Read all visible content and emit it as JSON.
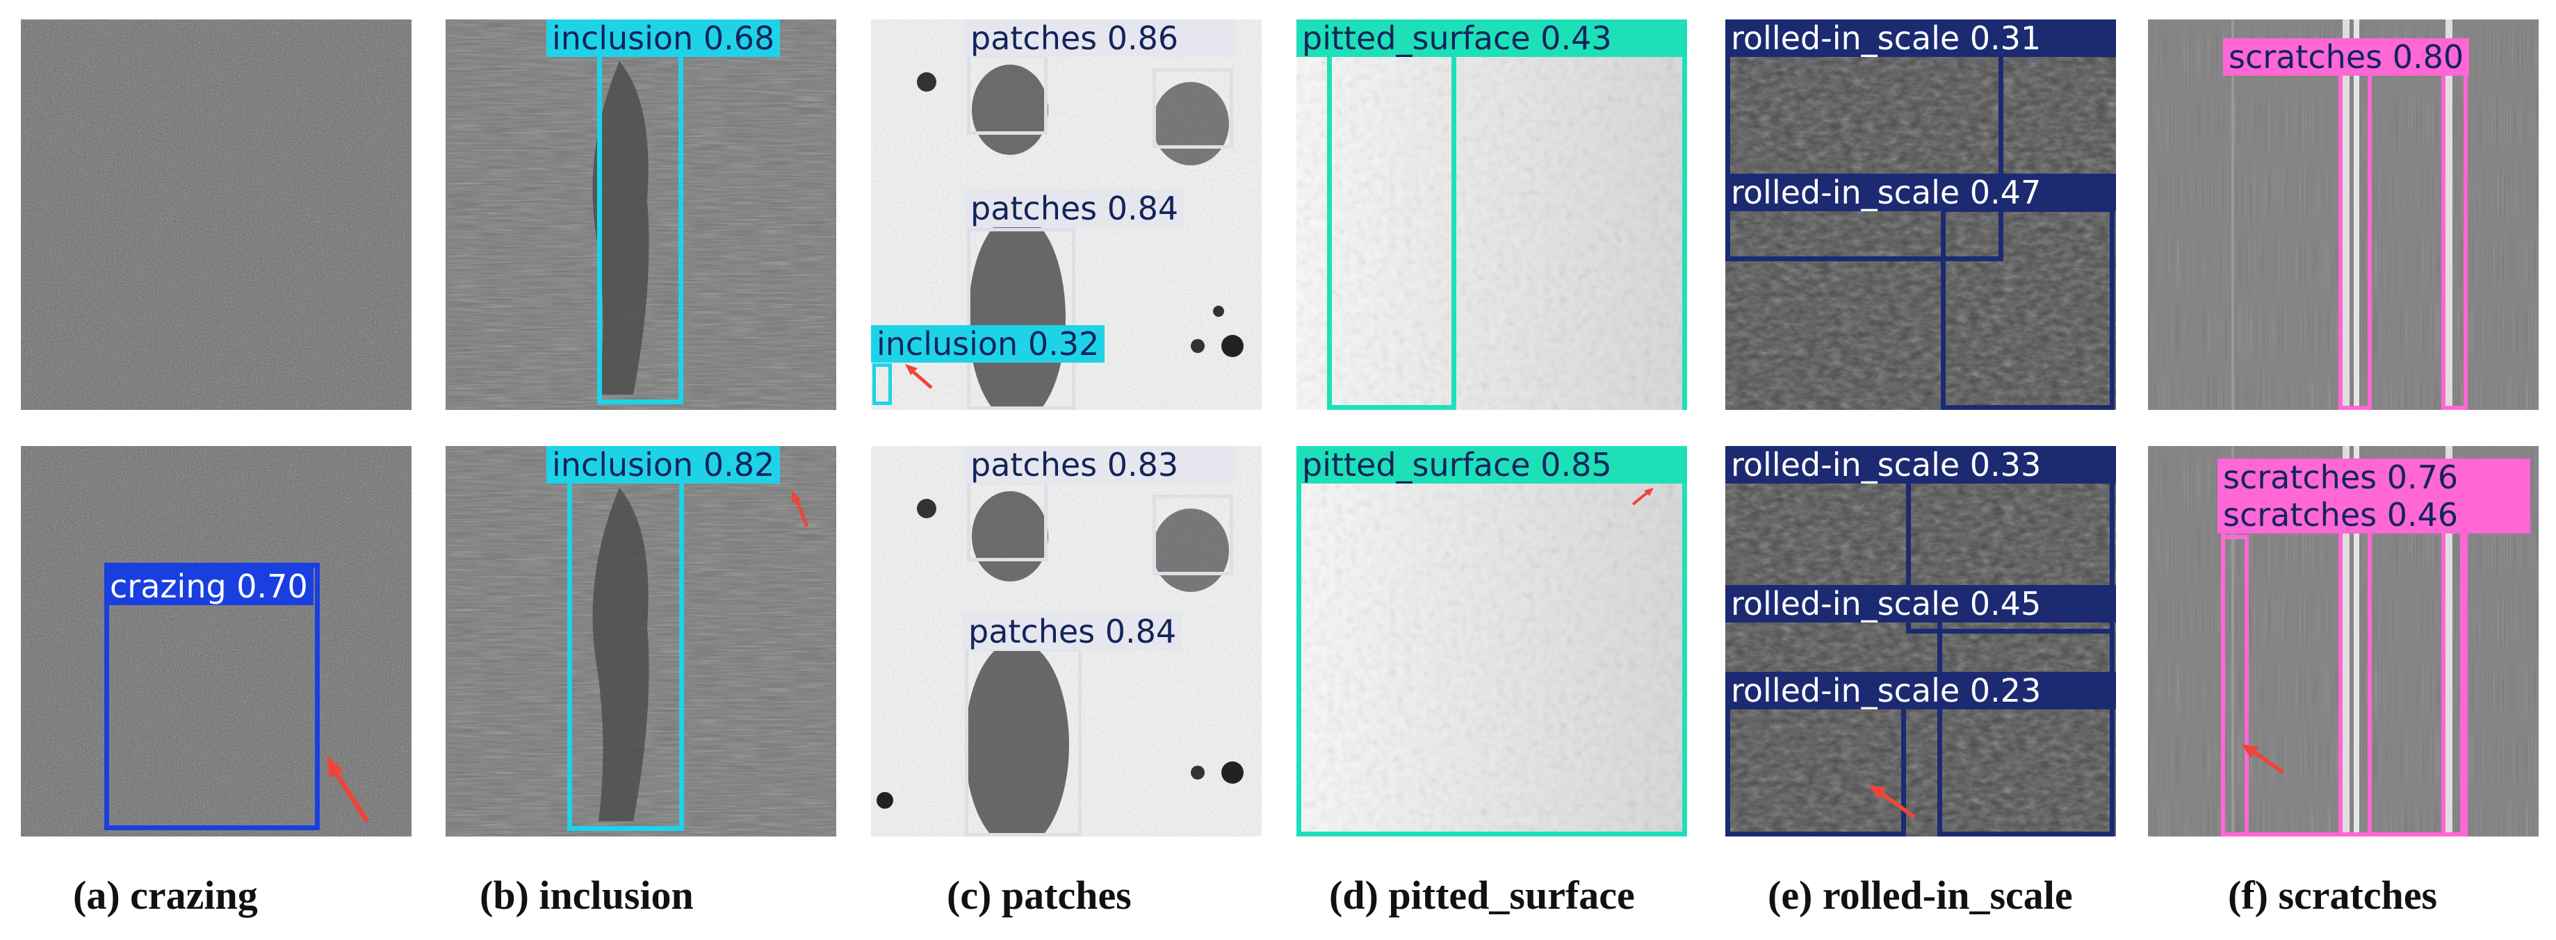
{
  "colors": {
    "crazing": "#1a3fe0",
    "inclusion": "#1ed3e8",
    "patches": "#e6e6ee",
    "pitted_surface": "#1ee0b8",
    "rolled_in_scale": "#1c2a72",
    "scratches": "#ff66d6",
    "arrow": "#f0443a"
  },
  "top_row": {
    "crazing": {
      "labels": []
    },
    "inclusion": {
      "labels": [
        "inclusion 0.68"
      ]
    },
    "patches": {
      "labels": [
        "patches 0.86",
        "patches 0.84",
        "inclusion 0.32"
      ]
    },
    "pitted_surface": {
      "labels": [
        "pitted_surface 0.43"
      ]
    },
    "rolled_in_scale": {
      "labels": [
        "rolled-in_scale 0.31",
        "rolled-in_scale 0.47"
      ]
    },
    "scratches": {
      "labels": [
        "scratches 0.80"
      ]
    }
  },
  "bottom_row": {
    "crazing": {
      "labels": [
        "crazing 0.70"
      ]
    },
    "inclusion": {
      "labels": [
        "inclusion 0.82"
      ]
    },
    "patches": {
      "labels": [
        "patches 0.83",
        "patches 0.84"
      ]
    },
    "pitted_surface": {
      "labels": [
        "pitted_surface 0.85"
      ]
    },
    "rolled_in_scale": {
      "labels": [
        "rolled-in_scale 0.33",
        "rolled-in_scale 0.45",
        "rolled-in_scale 0.23"
      ]
    },
    "scratches": {
      "labels": [
        "scratches 0.76",
        "scratches 0.46"
      ]
    }
  },
  "captions": [
    "(a) crazing",
    "(b) inclusion",
    "(c) patches",
    "(d) pitted_surface",
    "(e) rolled-in_scale",
    "(f) scratches"
  ]
}
